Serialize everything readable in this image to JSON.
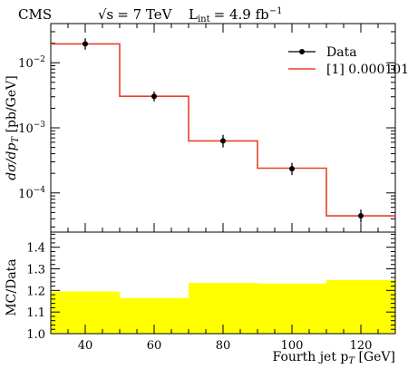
{
  "header": {
    "experiment": "CMS",
    "energy_sqrt": "√s",
    "energy_value": "= 7 TeV",
    "lumi_L": "L",
    "lumi_sub": "int",
    "lumi_value": "= 4.9 fb",
    "lumi_exp": "−1"
  },
  "colors": {
    "mc_line": "#e8412c",
    "ratio_band": "#ffff00",
    "data_marker": "#000000"
  },
  "chart_data": [
    {
      "type": "line",
      "name": "main-panel",
      "ylabel_parts": [
        "dσ/dp",
        "T",
        " [pb/GeV]"
      ],
      "yscale": "log",
      "xlim": [
        30,
        130
      ],
      "ylim": [
        2.5e-05,
        0.04
      ],
      "yticks": [
        0.0001,
        0.001,
        0.01
      ],
      "ytick_labels": [
        [
          "10",
          "−4"
        ],
        [
          "10",
          "−3"
        ],
        [
          "10",
          "−2"
        ]
      ],
      "bin_edges": [
        30,
        50,
        70,
        90,
        110,
        130
      ],
      "series": [
        {
          "name": "Data",
          "style": "points-with-errors",
          "x": [
            40,
            60,
            80,
            100,
            120
          ],
          "y": [
            0.0195,
            0.00305,
            0.00063,
            0.000235,
            4.45e-05
          ],
          "yerr_low": [
            0.0036,
            0.0005,
            0.00013,
            4.7e-05,
            9.5e-06
          ],
          "yerr_high": [
            0.0043,
            0.00058,
            0.00015,
            5.5e-05,
            1.1e-05
          ]
        },
        {
          "name": "[1] 0.000101",
          "style": "step-histogram",
          "values": [
            0.0195,
            0.00305,
            0.00063,
            0.00024,
            4.45e-05
          ]
        }
      ],
      "legend": {
        "placement": "top-right",
        "entries": [
          "Data",
          "[1] 0.000101"
        ]
      }
    },
    {
      "type": "area",
      "name": "ratio-panel",
      "ylabel": "MC/Data",
      "xlabel_parts": [
        "Fourth jet p",
        "T",
        " [GeV]"
      ],
      "xlim": [
        30,
        130
      ],
      "ylim": [
        1.0,
        1.47
      ],
      "yticks": [
        1.0,
        1.1,
        1.2,
        1.3,
        1.4
      ],
      "ytick_labels": [
        "1.0",
        "1.1",
        "1.2",
        "1.3",
        "1.4"
      ],
      "xticks": [
        40,
        60,
        80,
        100,
        120
      ],
      "xtick_labels": [
        "40",
        "60",
        "80",
        "100",
        "120"
      ],
      "bin_edges": [
        30,
        50,
        70,
        90,
        110,
        130
      ],
      "series": [
        {
          "name": "MC/Data band",
          "values": [
            1.195,
            1.165,
            1.235,
            1.232,
            1.248
          ]
        }
      ]
    }
  ]
}
